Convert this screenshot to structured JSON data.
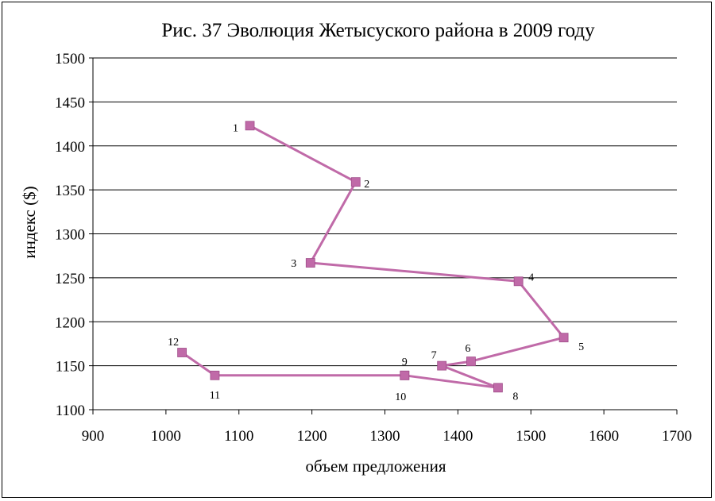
{
  "chart_data": {
    "type": "scatter",
    "title": "Рис. 37 Эволюция Жетысуского района в 2009 году",
    "xlabel": "объем предложения",
    "ylabel": "индекс ($)",
    "xlim": [
      900,
      1700
    ],
    "ylim": [
      1100,
      1500
    ],
    "x_ticks": [
      "900",
      "1000",
      "1100",
      "1200",
      "1300",
      "1400",
      "1500",
      "1600",
      "1700"
    ],
    "y_ticks": [
      "1100",
      "1150",
      "1200",
      "1250",
      "1300",
      "1350",
      "1400",
      "1450",
      "1500"
    ],
    "grid": "horizontal",
    "line_color": "#c06aa8",
    "marker_color": "#c06aa8",
    "series": [
      {
        "points": [
          {
            "label": "1",
            "x": 1115,
            "y": 1423
          },
          {
            "label": "2",
            "x": 1260,
            "y": 1359
          },
          {
            "label": "3",
            "x": 1198,
            "y": 1267
          },
          {
            "label": "4",
            "x": 1483,
            "y": 1246
          },
          {
            "label": "5",
            "x": 1545,
            "y": 1182
          },
          {
            "label": "6",
            "x": 1418,
            "y": 1155
          },
          {
            "label": "7",
            "x": 1378,
            "y": 1150
          },
          {
            "label": "8",
            "x": 1455,
            "y": 1125
          },
          {
            "label": "9",
            "x": 1327,
            "y": 1139
          },
          {
            "label": "10",
            "x": 1327,
            "y": 1139
          },
          {
            "label": "11",
            "x": 1067,
            "y": 1139
          },
          {
            "label": "12",
            "x": 1022,
            "y": 1165
          }
        ]
      }
    ]
  }
}
